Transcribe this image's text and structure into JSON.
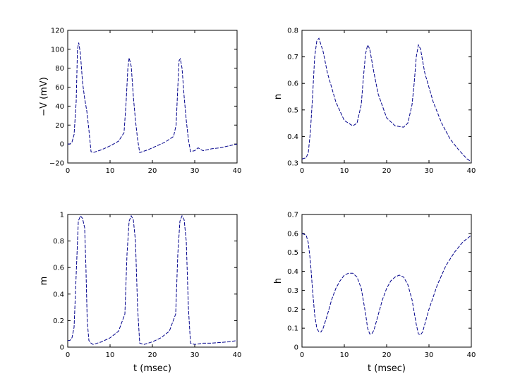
{
  "chart_data": [
    {
      "type": "line",
      "id": "voltage",
      "xlabel": "",
      "ylabel": "−V (mV)",
      "xlim": [
        0,
        40
      ],
      "ylim": [
        -20,
        120
      ],
      "xticks": [
        0,
        10,
        20,
        30,
        40
      ],
      "yticks": [
        -20,
        0,
        20,
        40,
        60,
        80,
        100,
        120
      ],
      "xticklabels": [
        "0",
        "10",
        "20",
        "30",
        "40"
      ],
      "yticklabels": [
        "−20",
        "0",
        "20",
        "40",
        "60",
        "80",
        "100",
        "120"
      ],
      "color": "#00008b",
      "series": [
        {
          "x": [
            0,
            0.5,
            1.0,
            1.5,
            2.0,
            2.3,
            2.6,
            3.0,
            3.5,
            4.0,
            4.5,
            5.0,
            5.5,
            6,
            8,
            10,
            12,
            13.3,
            13.8,
            14.2,
            14.5,
            15.0,
            15.5,
            16.0,
            16.5,
            17,
            19,
            21,
            23,
            25,
            25.6,
            26.0,
            26.3,
            26.6,
            27.0,
            27.5,
            28.0,
            28.5,
            29,
            30,
            30.8,
            31.5,
            32,
            34,
            36,
            38,
            40
          ],
          "y": [
            0,
            0,
            2,
            10,
            45,
            100,
            107,
            95,
            65,
            48,
            35,
            15,
            -8,
            -9,
            -6,
            -2,
            3,
            12,
            45,
            80,
            91,
            82,
            50,
            25,
            5,
            -9,
            -6,
            -2,
            2,
            8,
            20,
            60,
            88,
            90,
            80,
            50,
            25,
            5,
            -8,
            -7,
            -4,
            -6,
            -7,
            -5,
            -4,
            -2,
            0
          ]
        }
      ]
    },
    {
      "type": "line",
      "id": "n-gate",
      "xlabel": "",
      "ylabel": "n",
      "xlim": [
        0,
        40
      ],
      "ylim": [
        0.3,
        0.8
      ],
      "xticks": [
        0,
        10,
        20,
        30,
        40
      ],
      "yticks": [
        0.3,
        0.4,
        0.5,
        0.6,
        0.7,
        0.8
      ],
      "xticklabels": [
        "0",
        "10",
        "20",
        "30",
        "40"
      ],
      "yticklabels": [
        "0.3",
        "0.4",
        "0.5",
        "0.6",
        "0.7",
        "0.8"
      ],
      "color": "#00008b",
      "series": [
        {
          "x": [
            0,
            1,
            1.5,
            2,
            2.5,
            3,
            3.5,
            4,
            5,
            6,
            8,
            10,
            12,
            13,
            14,
            14.5,
            15,
            15.5,
            16,
            17,
            18,
            20,
            22,
            24,
            25,
            26,
            26.5,
            27,
            27.5,
            28,
            29,
            31,
            33,
            35,
            37,
            39,
            40
          ],
          "y": [
            0.315,
            0.32,
            0.34,
            0.42,
            0.55,
            0.7,
            0.76,
            0.77,
            0.72,
            0.64,
            0.53,
            0.46,
            0.44,
            0.45,
            0.52,
            0.62,
            0.71,
            0.745,
            0.73,
            0.64,
            0.56,
            0.47,
            0.44,
            0.435,
            0.45,
            0.52,
            0.6,
            0.7,
            0.745,
            0.73,
            0.64,
            0.53,
            0.45,
            0.39,
            0.35,
            0.315,
            0.305
          ]
        }
      ]
    },
    {
      "type": "line",
      "id": "m-gate",
      "xlabel": "t (msec)",
      "ylabel": "m",
      "xlim": [
        0,
        40
      ],
      "ylim": [
        0,
        1
      ],
      "xticks": [
        0,
        10,
        20,
        30,
        40
      ],
      "yticks": [
        0,
        0.2,
        0.4,
        0.6,
        0.8,
        1
      ],
      "xticklabels": [
        "0",
        "10",
        "20",
        "30",
        "40"
      ],
      "yticklabels": [
        "0",
        "0.2",
        "0.4",
        "0.6",
        "0.8",
        "1"
      ],
      "color": "#00008b",
      "series": [
        {
          "x": [
            0,
            0.5,
            1.0,
            1.5,
            2.0,
            2.5,
            3.0,
            3.5,
            4.0,
            4.3,
            4.6,
            5.0,
            5.5,
            6,
            8,
            10,
            12,
            13.5,
            14.0,
            14.5,
            15.0,
            15.5,
            16.0,
            16.5,
            17,
            18,
            20,
            22,
            24,
            25.5,
            26.0,
            26.5,
            27.0,
            27.5,
            28.0,
            28.5,
            29,
            30,
            32,
            34,
            36,
            38,
            40
          ],
          "y": [
            0.05,
            0.05,
            0.07,
            0.15,
            0.55,
            0.95,
            0.99,
            0.97,
            0.9,
            0.6,
            0.2,
            0.05,
            0.03,
            0.02,
            0.04,
            0.07,
            0.12,
            0.25,
            0.7,
            0.95,
            0.99,
            0.96,
            0.8,
            0.3,
            0.03,
            0.02,
            0.04,
            0.07,
            0.12,
            0.25,
            0.7,
            0.95,
            0.99,
            0.96,
            0.8,
            0.3,
            0.03,
            0.02,
            0.03,
            0.03,
            0.035,
            0.04,
            0.05
          ]
        }
      ]
    },
    {
      "type": "line",
      "id": "h-gate",
      "xlabel": "t (msec)",
      "ylabel": "h",
      "xlim": [
        0,
        40
      ],
      "ylim": [
        0,
        0.7
      ],
      "xticks": [
        0,
        10,
        20,
        30,
        40
      ],
      "yticks": [
        0,
        0.1,
        0.2,
        0.3,
        0.4,
        0.5,
        0.6,
        0.7
      ],
      "xticklabels": [
        "0",
        "10",
        "20",
        "30",
        "40"
      ],
      "yticklabels": [
        "0",
        "0.1",
        "0.2",
        "0.3",
        "0.4",
        "0.5",
        "0.6",
        "0.7"
      ],
      "color": "#00008b",
      "series": [
        {
          "x": [
            0,
            1,
            1.5,
            2,
            2.5,
            3,
            3.5,
            4,
            4.5,
            5,
            6,
            7,
            8,
            9,
            10,
            11,
            12,
            13,
            14,
            15,
            15.5,
            16,
            16.5,
            17,
            18,
            19,
            20,
            21,
            22,
            23,
            24,
            25,
            26,
            27,
            27.5,
            28,
            28.5,
            29,
            30,
            32,
            34,
            36,
            38,
            40
          ],
          "y": [
            0.6,
            0.59,
            0.55,
            0.45,
            0.3,
            0.17,
            0.1,
            0.08,
            0.08,
            0.1,
            0.17,
            0.25,
            0.31,
            0.35,
            0.38,
            0.39,
            0.39,
            0.37,
            0.31,
            0.18,
            0.1,
            0.07,
            0.07,
            0.09,
            0.17,
            0.25,
            0.31,
            0.35,
            0.37,
            0.38,
            0.37,
            0.33,
            0.25,
            0.12,
            0.07,
            0.065,
            0.08,
            0.12,
            0.2,
            0.33,
            0.43,
            0.5,
            0.555,
            0.59
          ]
        }
      ]
    }
  ]
}
